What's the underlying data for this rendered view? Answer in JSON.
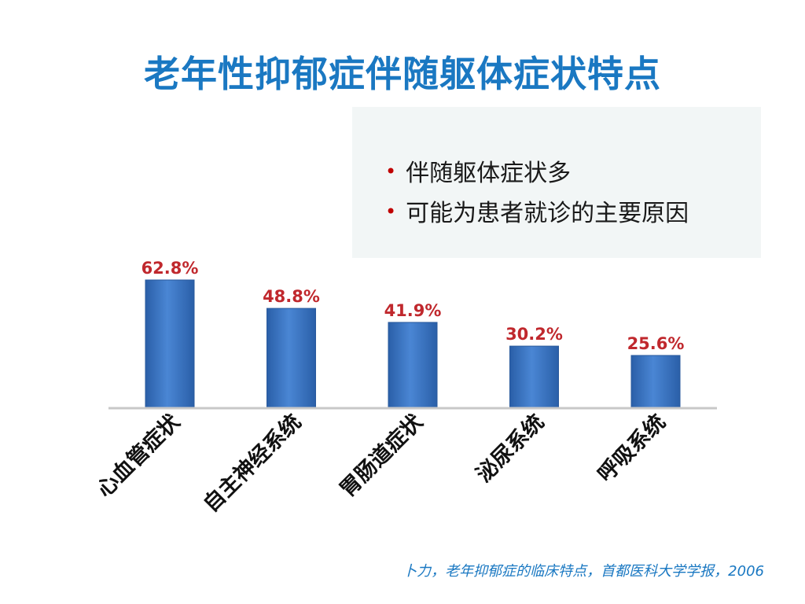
{
  "slide": {
    "title": "老年性抑郁症伴随躯体症状特点",
    "bullets": [
      "伴随躯体症状多",
      "可能为患者就诊的主要原因"
    ],
    "source": "卜力，老年抑郁症的临床特点，首都医科大学学报，2006"
  },
  "colors": {
    "title": "#1a78c2",
    "bar": "#3a76c4",
    "data_label": "#c0282d",
    "bullet": "#c00000"
  },
  "chart_data": {
    "type": "bar",
    "categories": [
      "心血管症状",
      "自主神经系统",
      "胃肠道症状",
      "泌尿系统",
      "呼吸系统"
    ],
    "values": [
      62.8,
      48.8,
      41.9,
      30.2,
      25.6
    ],
    "data_labels": [
      "62.8%",
      "48.8%",
      "41.9%",
      "30.2%",
      "25.6%"
    ],
    "title": "",
    "xlabel": "",
    "ylabel": "",
    "ylim": [
      0,
      65
    ],
    "grid": false,
    "legend": "none"
  }
}
